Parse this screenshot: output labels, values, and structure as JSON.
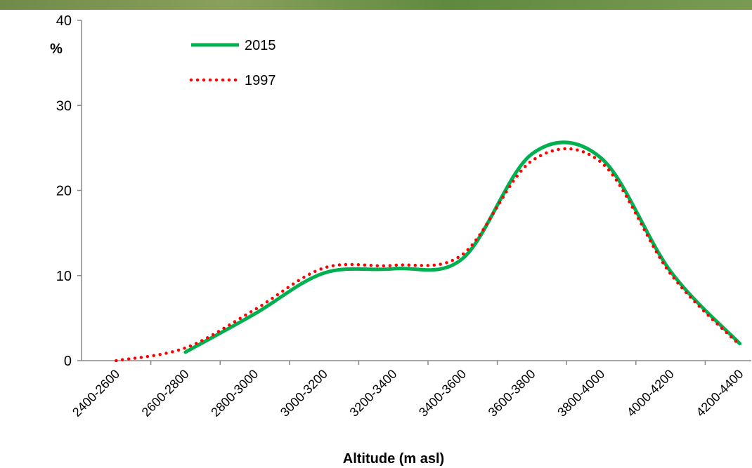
{
  "chart_data": {
    "type": "line",
    "y_label": "%",
    "x_label": "Altitude (m asl)",
    "categories": [
      "2400-2600",
      "2600-2800",
      "2800-3000",
      "3000-3200",
      "3200-3400",
      "3400-3600",
      "3600-3800",
      "3800-4000",
      "4000-4200",
      "4200-4400"
    ],
    "series": [
      {
        "name": "2015",
        "color": "#00b050",
        "style": "solid",
        "values": [
          null,
          1,
          5.5,
          10.3,
          10.8,
          12,
          24.3,
          23.8,
          10.5,
          2
        ]
      },
      {
        "name": "1997",
        "color": "#ff0000",
        "style": "dotted",
        "values": [
          0,
          1.5,
          6,
          10.9,
          11.2,
          12.5,
          23.5,
          23.3,
          10.2,
          1.8
        ]
      }
    ],
    "ylim": [
      0,
      40
    ],
    "yticks": [
      0,
      10,
      20,
      30,
      40
    ],
    "smooth": true
  }
}
